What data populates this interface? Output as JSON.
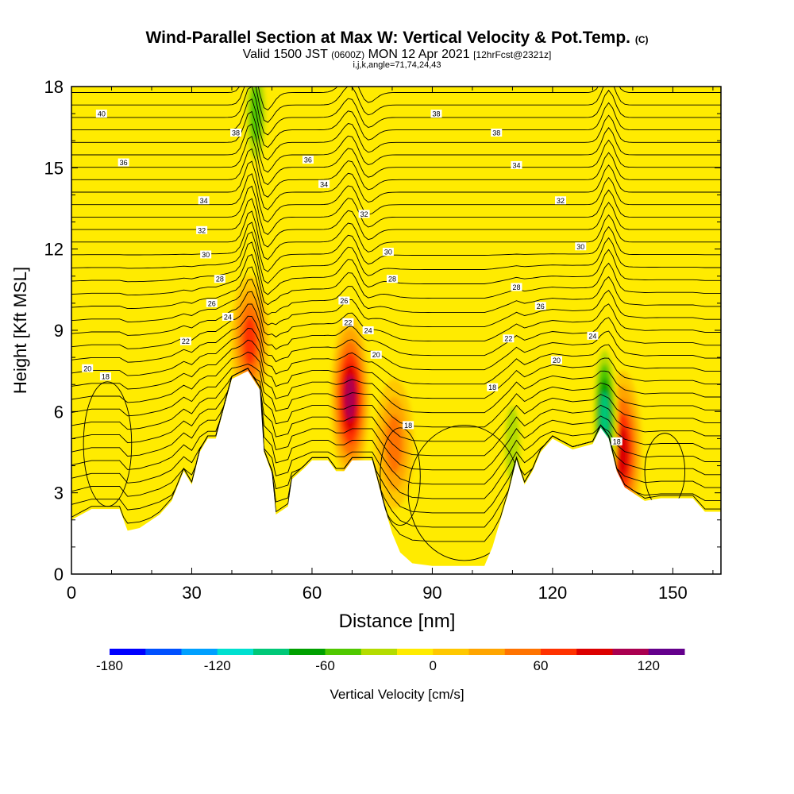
{
  "header": {
    "title": "Wind-Parallel Section at Max W: Vertical Velocity & Pot.Temp.",
    "copyright": "(C)",
    "subtitle_valid": "Valid 1500 JST",
    "subtitle_z": "(0600Z)",
    "subtitle_date": "MON 12 Apr 2021",
    "subtitle_fcst": "[12hrFcst@2321z]",
    "subtitle_params": "i,j,k,angle=71,74,24,43"
  },
  "chart_data": {
    "type": "heatmap",
    "xlabel": "Distance [nm]",
    "ylabel": "Height [Kft MSL]",
    "xlim": [
      0,
      162
    ],
    "ylim": [
      0,
      18
    ],
    "x_ticks": [
      "0",
      "30",
      "60",
      "90",
      "120",
      "150"
    ],
    "y_ticks": [
      "0",
      "3",
      "6",
      "9",
      "12",
      "15",
      "18"
    ],
    "colorbar": {
      "label": "Vertical Velocity [cm/s]",
      "tick_labels": [
        "-180",
        "-120",
        "-60",
        "0",
        "60",
        "120"
      ],
      "colors": [
        "#0000ff",
        "#0050ff",
        "#00a0ff",
        "#00e0d0",
        "#00c878",
        "#00a000",
        "#50c800",
        "#b4dc00",
        "#ffeb00",
        "#ffc800",
        "#ffa500",
        "#ff7300",
        "#ff3200",
        "#dc0000",
        "#aa0050",
        "#64008c"
      ]
    },
    "terrain_height_kft": [
      {
        "x": 0,
        "y": 2.0
      },
      {
        "x": 5,
        "y": 2.4
      },
      {
        "x": 12,
        "y": 2.4
      },
      {
        "x": 14,
        "y": 1.6
      },
      {
        "x": 17,
        "y": 1.7
      },
      {
        "x": 22,
        "y": 2.2
      },
      {
        "x": 25,
        "y": 2.7
      },
      {
        "x": 28,
        "y": 3.8
      },
      {
        "x": 30,
        "y": 3.3
      },
      {
        "x": 32,
        "y": 4.5
      },
      {
        "x": 34,
        "y": 5.0
      },
      {
        "x": 36,
        "y": 5.0
      },
      {
        "x": 40,
        "y": 7.2
      },
      {
        "x": 44,
        "y": 7.5
      },
      {
        "x": 47,
        "y": 6.8
      },
      {
        "x": 48,
        "y": 4.5
      },
      {
        "x": 50,
        "y": 3.7
      },
      {
        "x": 51,
        "y": 2.2
      },
      {
        "x": 54,
        "y": 2.5
      },
      {
        "x": 55,
        "y": 3.5
      },
      {
        "x": 58,
        "y": 3.9
      },
      {
        "x": 60,
        "y": 4.2
      },
      {
        "x": 64,
        "y": 4.2
      },
      {
        "x": 66,
        "y": 3.8
      },
      {
        "x": 68,
        "y": 3.8
      },
      {
        "x": 70,
        "y": 4.2
      },
      {
        "x": 75,
        "y": 4.2
      },
      {
        "x": 78,
        "y": 2.5
      },
      {
        "x": 80,
        "y": 1.5
      },
      {
        "x": 82,
        "y": 0.8
      },
      {
        "x": 85,
        "y": 0.4
      },
      {
        "x": 90,
        "y": 0.3
      },
      {
        "x": 103,
        "y": 0.3
      },
      {
        "x": 105,
        "y": 1.0
      },
      {
        "x": 107,
        "y": 2.0
      },
      {
        "x": 109,
        "y": 3.0
      },
      {
        "x": 111,
        "y": 4.2
      },
      {
        "x": 113,
        "y": 3.3
      },
      {
        "x": 115,
        "y": 3.8
      },
      {
        "x": 117,
        "y": 4.5
      },
      {
        "x": 120,
        "y": 5.0
      },
      {
        "x": 125,
        "y": 4.6
      },
      {
        "x": 130,
        "y": 4.8
      },
      {
        "x": 132,
        "y": 5.4
      },
      {
        "x": 134,
        "y": 5.0
      },
      {
        "x": 136,
        "y": 3.8
      },
      {
        "x": 138,
        "y": 3.2
      },
      {
        "x": 143,
        "y": 2.7
      },
      {
        "x": 147,
        "y": 2.8
      },
      {
        "x": 155,
        "y": 2.8
      },
      {
        "x": 158,
        "y": 2.3
      },
      {
        "x": 162,
        "y": 2.3
      }
    ],
    "updraft_cores": [
      {
        "x": 44.5,
        "y": 8.6,
        "peak_cm_s": 90
      },
      {
        "x": 69.5,
        "y": 6.5,
        "peak_cm_s": 130
      },
      {
        "x": 80.5,
        "y": 4.8,
        "peak_cm_s": 75
      },
      {
        "x": 137.5,
        "y": 4.5,
        "peak_cm_s": 110
      }
    ],
    "downdraft_cores": [
      {
        "x": 46,
        "y": 17.0,
        "peak_cm_s": -70
      },
      {
        "x": 17,
        "y": 3.6,
        "peak_cm_s": -35
      },
      {
        "x": 110,
        "y": 4.8,
        "peak_cm_s": -50
      },
      {
        "x": 133,
        "y": 5.8,
        "peak_cm_s": -110
      }
    ],
    "contour_labels": [
      {
        "x": 7.5,
        "y": 17.0,
        "text": "40"
      },
      {
        "x": 41,
        "y": 16.3,
        "text": "38"
      },
      {
        "x": 91,
        "y": 17.0,
        "text": "38"
      },
      {
        "x": 106,
        "y": 16.3,
        "text": "38"
      },
      {
        "x": 13,
        "y": 15.2,
        "text": "36"
      },
      {
        "x": 59,
        "y": 15.3,
        "text": "36"
      },
      {
        "x": 111,
        "y": 15.1,
        "text": "34"
      },
      {
        "x": 63,
        "y": 14.4,
        "text": "34"
      },
      {
        "x": 33,
        "y": 13.8,
        "text": "34"
      },
      {
        "x": 122,
        "y": 13.8,
        "text": "32"
      },
      {
        "x": 73,
        "y": 13.3,
        "text": "32"
      },
      {
        "x": 32.5,
        "y": 12.7,
        "text": "32"
      },
      {
        "x": 33.5,
        "y": 11.8,
        "text": "30"
      },
      {
        "x": 79,
        "y": 11.9,
        "text": "30"
      },
      {
        "x": 127,
        "y": 12.1,
        "text": "30"
      },
      {
        "x": 37,
        "y": 10.9,
        "text": "28"
      },
      {
        "x": 80,
        "y": 10.9,
        "text": "28"
      },
      {
        "x": 111,
        "y": 10.6,
        "text": "28"
      },
      {
        "x": 35,
        "y": 10.0,
        "text": "26"
      },
      {
        "x": 68,
        "y": 10.1,
        "text": "26"
      },
      {
        "x": 117,
        "y": 9.9,
        "text": "26"
      },
      {
        "x": 39,
        "y": 9.5,
        "text": "24"
      },
      {
        "x": 69,
        "y": 9.3,
        "text": "22"
      },
      {
        "x": 74,
        "y": 9.0,
        "text": "24"
      },
      {
        "x": 130,
        "y": 8.8,
        "text": "24"
      },
      {
        "x": 28.5,
        "y": 8.6,
        "text": "22"
      },
      {
        "x": 109,
        "y": 8.7,
        "text": "22"
      },
      {
        "x": 76,
        "y": 8.1,
        "text": "20"
      },
      {
        "x": 121,
        "y": 7.9,
        "text": "20"
      },
      {
        "x": 4,
        "y": 7.6,
        "text": "20"
      },
      {
        "x": 8.5,
        "y": 7.3,
        "text": "18"
      },
      {
        "x": 105,
        "y": 6.9,
        "text": "18"
      },
      {
        "x": 84,
        "y": 5.5,
        "text": "18"
      },
      {
        "x": 136,
        "y": 4.9,
        "text": "18"
      }
    ]
  }
}
